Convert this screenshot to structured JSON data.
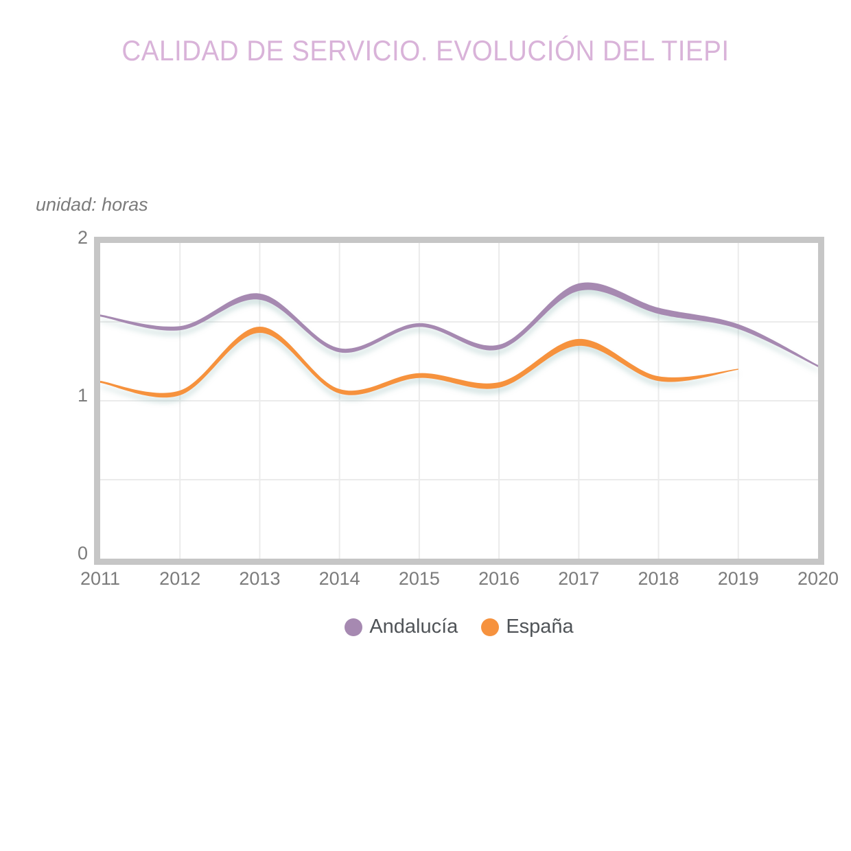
{
  "title": "CALIDAD DE SERVICIO. EVOLUCIÓN DEL TIEPI",
  "unit_label": "unidad: horas",
  "chart_data": {
    "type": "line",
    "title": "CALIDAD DE SERVICIO. EVOLUCIÓN DEL TIEPI",
    "subtitle": "unidad: horas",
    "x": [
      "2011",
      "2012",
      "2013",
      "2014",
      "2015",
      "2016",
      "2017",
      "2018",
      "2019",
      "2020"
    ],
    "series": [
      {
        "name": "Andalucía",
        "color": "#a689b1",
        "values": [
          1.54,
          1.46,
          1.66,
          1.32,
          1.48,
          1.34,
          1.72,
          1.57,
          1.47,
          1.22
        ]
      },
      {
        "name": "España",
        "color": "#f6923e",
        "values": [
          1.12,
          1.05,
          1.45,
          1.06,
          1.16,
          1.1,
          1.37,
          1.14,
          1.2,
          null
        ]
      }
    ],
    "xlabel": "",
    "ylabel": "horas",
    "ylim": [
      0,
      2
    ],
    "y_ticks": [
      0,
      1,
      2
    ],
    "grid": "on",
    "grid_y_interval": 0.5,
    "legend_position": "bottom",
    "line_style": "smoothed variable-width curve with soft teal drop shadow"
  },
  "colors": {
    "title": "#d9b3d9",
    "axis_text": "#7b7b7b",
    "legend_text": "#4f5357",
    "plot_border": "#c6c6c6",
    "gridline": "#ebebeb",
    "shadow": "#8fb8b4",
    "background": "#ffffff",
    "andalucia": "#a689b1",
    "espana": "#f6923e"
  }
}
